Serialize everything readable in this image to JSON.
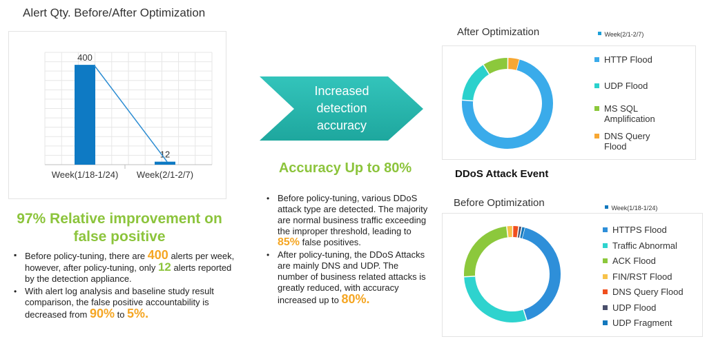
{
  "header": {
    "title": "Alert Qty. Before/After Optimization"
  },
  "arrow_label": "Increased detection accuracy",
  "accuracy_heading": "Accuracy Up to 80%",
  "left": {
    "heading": "97% Relative improvement on false positive",
    "bullet1": {
      "a": "Before policy-tuning, there are ",
      "b": "400",
      "c": " alerts per week, however, after policy-tuning, only ",
      "d": "12",
      "e": " alerts reported by the detection appliance."
    },
    "bullet2": {
      "a": "With alert log analysis and baseline study result comparison, the false positive accountability is decreased from ",
      "b": "90%",
      "c": " to ",
      "d": "5%."
    }
  },
  "middle": {
    "bullet1": {
      "a": "Before policy-tuning, various DDoS attack type are detected. The majority are normal business traffic exceeding the improper threshold, leading to ",
      "b": "85%",
      "c": " false positives."
    },
    "bullet2": {
      "a": "After policy-tuning, the DDoS Attacks are mainly DNS and UDP. The number of business related attacks is greatly reduced, with accuracy increased up to ",
      "b": "80%."
    }
  },
  "ddos_title": "DDoS Attack Event",
  "chart_data": [
    {
      "type": "line",
      "title": "Alert Qty. Before/After Optimization",
      "categories": [
        "Week(1/18-1/24)",
        "Week(2/1-2/7)"
      ],
      "values": [
        400,
        12
      ],
      "data_labels": [
        "400",
        "12"
      ],
      "ylim": [
        0,
        450
      ],
      "grid": true,
      "colors": {
        "bar": "#0e7ac4",
        "line": "#2b8cd2"
      }
    },
    {
      "type": "pie",
      "title": "After Optimization",
      "series_name": "Week(2/1-2/7)",
      "labels": [
        "HTTP Flood",
        "UDP Flood",
        "MS SQL Amplification",
        "DNS Query Flood"
      ],
      "values": [
        72,
        15,
        9,
        4
      ],
      "colors": [
        "#3aabea",
        "#2bd1cc",
        "#8cc83c",
        "#f7a733"
      ],
      "legend": "right"
    },
    {
      "type": "pie",
      "title": "Before Optimization",
      "series_name": "Week(1/18-1/24)",
      "labels": [
        "HTTPS Flood",
        "Traffic Abnormal",
        "ACK Flood",
        "FIN/RST Flood",
        "DNS Query Flood",
        "UDP Flood",
        "UDP Fragment"
      ],
      "values": [
        41,
        29,
        24,
        2,
        2,
        1,
        1
      ],
      "colors": [
        "#2e8fd9",
        "#2ed3ce",
        "#8cc83c",
        "#f7c24a",
        "#f04f1e",
        "#4a4f6b",
        "#1378bd"
      ],
      "legend": "right"
    }
  ]
}
